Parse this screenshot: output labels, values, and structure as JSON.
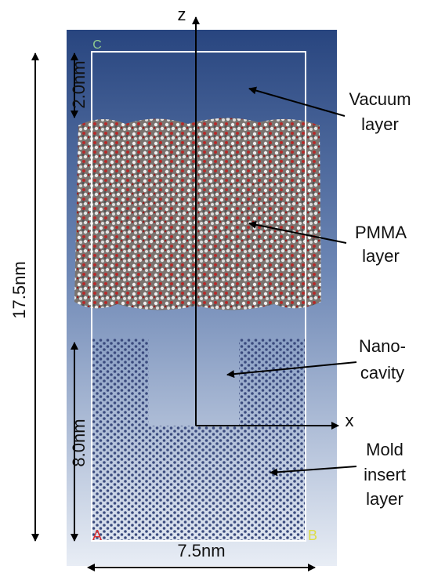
{
  "axes": {
    "z": "z",
    "x": "x"
  },
  "corners": {
    "C": "C",
    "A": "A",
    "B": "B"
  },
  "dimensions": {
    "top_gap": "2.0nm",
    "height": "17.5nm",
    "mold": "8.0nm",
    "width": "7.5nm"
  },
  "labels": [
    {
      "lines": [
        "Vacuum",
        "layer"
      ]
    },
    {
      "lines": [
        "PMMA",
        "layer"
      ]
    },
    {
      "lines": [
        "Nano-",
        "cavity"
      ]
    },
    {
      "lines": [
        "Mold",
        "insert",
        "layer"
      ]
    }
  ]
}
